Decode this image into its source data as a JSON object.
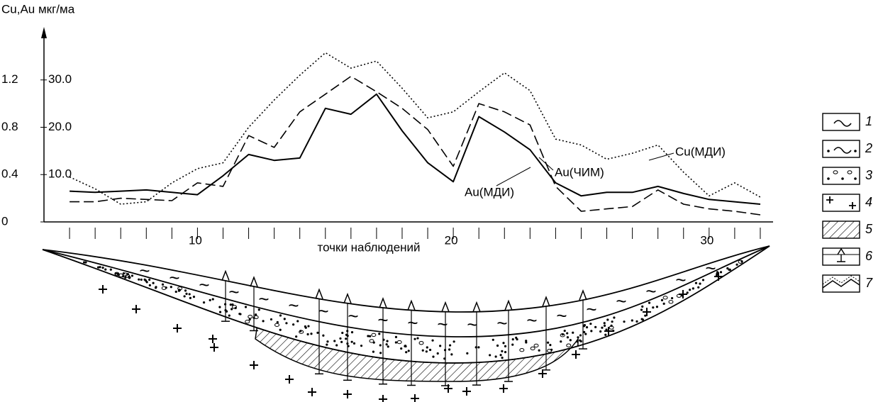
{
  "chart_data": {
    "type": "line",
    "y_label": "Cu,Au мкг/ма",
    "x_label": "точки наблюдений",
    "x": [
      5,
      6,
      7,
      8,
      9,
      10,
      11,
      12,
      13,
      14,
      15,
      16,
      17,
      18,
      19,
      20,
      21,
      22,
      23,
      24,
      25,
      26,
      27,
      28,
      29,
      30,
      31,
      32
    ],
    "xlim": [
      4,
      32.5
    ],
    "xticks": [
      10,
      20,
      30
    ],
    "ylim": [
      0,
      1.6
    ],
    "yticks": [
      0,
      0.4,
      0.8,
      1.2
    ],
    "y2lim": [
      0,
      40
    ],
    "y2ticks": [
      {
        "value": 10,
        "label": "10.0"
      },
      {
        "value": 20,
        "label": "20.0"
      },
      {
        "value": 30,
        "label": "30.0"
      }
    ],
    "series": [
      {
        "name": "Au(МДИ)",
        "color": "#000000",
        "style": "solid",
        "values": [
          0.26,
          0.25,
          0.26,
          0.27,
          0.25,
          0.23,
          0.39,
          0.57,
          0.52,
          0.54,
          0.96,
          0.91,
          1.08,
          0.77,
          0.5,
          0.34,
          0.89,
          0.76,
          0.61,
          0.33,
          0.22,
          0.25,
          0.25,
          0.3,
          0.24,
          0.19,
          0.17,
          0.15
        ]
      },
      {
        "name": "Au(ЧИМ)",
        "color": "#000000",
        "style": "dashed",
        "values": [
          0.17,
          0.17,
          0.2,
          0.19,
          0.18,
          0.33,
          0.3,
          0.73,
          0.63,
          0.93,
          1.08,
          1.23,
          1.1,
          0.96,
          0.78,
          0.47,
          1.0,
          0.93,
          0.82,
          0.3,
          0.09,
          0.11,
          0.13,
          0.27,
          0.15,
          0.11,
          0.09,
          0.06
        ]
      },
      {
        "name": "Cu(МДИ)",
        "color": "#000000",
        "style": "dotted",
        "values": [
          0.38,
          0.28,
          0.15,
          0.17,
          0.33,
          0.45,
          0.5,
          0.8,
          1.03,
          1.24,
          1.43,
          1.3,
          1.36,
          1.13,
          0.88,
          0.93,
          1.1,
          1.26,
          1.11,
          0.7,
          0.65,
          0.53,
          0.58,
          0.65,
          0.42,
          0.22,
          0.33,
          0.21
        ]
      }
    ]
  },
  "section_legend": [
    "1",
    "2",
    "3",
    "4",
    "5",
    "6",
    "7"
  ]
}
